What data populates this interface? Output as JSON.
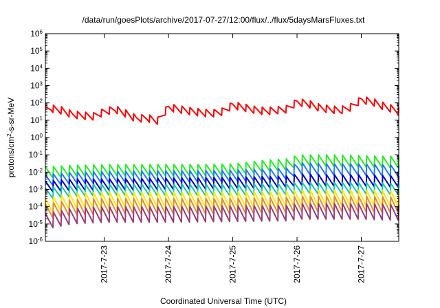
{
  "chart_data": {
    "type": "line",
    "title": "/data/run/goesPlots/archive/2017-07-27/12:00/flux/../flux/5daysMarsFluxes.txt",
    "xlabel": "Coordinated Universal Time (UTC)",
    "ylabel": {
      "base": "protons/cm",
      "sup": "2",
      "rest": "-s-sr-MeV"
    },
    "yscale": "log",
    "ylim": [
      -6,
      6
    ],
    "yticks": [
      {
        "exp": -6,
        "base": "10",
        "sup": "-6"
      },
      {
        "exp": -5,
        "base": "10",
        "sup": "-5"
      },
      {
        "exp": -4,
        "base": "10",
        "sup": "-4"
      },
      {
        "exp": -3,
        "base": "10",
        "sup": "-3"
      },
      {
        "exp": -2,
        "base": "10",
        "sup": "-2"
      },
      {
        "exp": -1,
        "base": "10",
        "sup": "-1"
      },
      {
        "exp": 0,
        "base": "10",
        "sup": "0"
      },
      {
        "exp": 1,
        "base": "10",
        "sup": "1"
      },
      {
        "exp": 2,
        "base": "10",
        "sup": "2"
      },
      {
        "exp": 3,
        "base": "10",
        "sup": "3"
      },
      {
        "exp": 4,
        "base": "10",
        "sup": "4"
      },
      {
        "exp": 5,
        "base": "10",
        "sup": "5"
      },
      {
        "exp": 6,
        "base": "10",
        "sup": "6"
      }
    ],
    "xlim": [
      "2017-07-22 02:00",
      "2017-07-27 14:00"
    ],
    "xticks": [
      {
        "t": "2017-07-23 00:00",
        "label": "2017-7-23"
      },
      {
        "t": "2017-07-24 00:00",
        "label": "2017-7-24"
      },
      {
        "t": "2017-07-25 00:00",
        "label": "2017-7-25"
      },
      {
        "t": "2017-07-26 00:00",
        "label": "2017-7-26"
      },
      {
        "t": "2017-07-27 00:00",
        "label": "2017-7-27"
      }
    ],
    "series": [
      {
        "color": "#ff0000",
        "cycle_hours": 3,
        "points": [
          [
            "2017-07-22 02:00",
            60
          ],
          [
            "2017-07-22 04:00",
            80
          ],
          [
            "2017-07-22 08:00",
            60
          ],
          [
            "2017-07-22 12:00",
            35
          ],
          [
            "2017-07-22 16:00",
            30
          ],
          [
            "2017-07-22 20:00",
            27
          ],
          [
            "2017-07-23 00:00",
            50
          ],
          [
            "2017-07-23 04:00",
            70
          ],
          [
            "2017-07-23 08:00",
            40
          ],
          [
            "2017-07-23 12:00",
            20
          ],
          [
            "2017-07-23 16:00",
            22
          ],
          [
            "2017-07-23 20:00",
            15
          ],
          [
            "2017-07-24 00:00",
            90
          ],
          [
            "2017-07-24 04:00",
            70
          ],
          [
            "2017-07-24 08:00",
            55
          ],
          [
            "2017-07-24 12:00",
            45
          ],
          [
            "2017-07-24 16:00",
            40
          ],
          [
            "2017-07-24 20:00",
            50
          ],
          [
            "2017-07-25 00:00",
            120
          ],
          [
            "2017-07-25 04:00",
            90
          ],
          [
            "2017-07-25 08:00",
            65
          ],
          [
            "2017-07-25 12:00",
            55
          ],
          [
            "2017-07-25 16:00",
            60
          ],
          [
            "2017-07-25 20:00",
            70
          ],
          [
            "2017-07-26 00:00",
            180
          ],
          [
            "2017-07-26 04:00",
            150
          ],
          [
            "2017-07-26 08:00",
            90
          ],
          [
            "2017-07-26 12:00",
            70
          ],
          [
            "2017-07-26 16:00",
            60
          ],
          [
            "2017-07-26 20:00",
            90
          ],
          [
            "2017-07-27 00:00",
            250
          ],
          [
            "2017-07-27 04:00",
            190
          ],
          [
            "2017-07-27 08:00",
            110
          ],
          [
            "2017-07-27 14:00",
            55
          ]
        ]
      },
      {
        "color": "#22ee22",
        "cycle_hours": 3,
        "points": [
          [
            "2017-07-22 02:00",
            0.02
          ],
          [
            "2017-07-22 12:00",
            0.025
          ],
          [
            "2017-07-23 00:00",
            0.027
          ],
          [
            "2017-07-24 00:00",
            0.028
          ],
          [
            "2017-07-24 12:00",
            0.028
          ],
          [
            "2017-07-25 00:00",
            0.03
          ],
          [
            "2017-07-25 12:00",
            0.05
          ],
          [
            "2017-07-25 21:00",
            0.06
          ],
          [
            "2017-07-26 00:00",
            0.1
          ],
          [
            "2017-07-26 12:00",
            0.1
          ],
          [
            "2017-07-27 00:00",
            0.09
          ],
          [
            "2017-07-27 14:00",
            0.08
          ]
        ]
      },
      {
        "color": "#1e78ff",
        "cycle_hours": 3,
        "points": [
          [
            "2017-07-22 02:00",
            0.007
          ],
          [
            "2017-07-22 12:00",
            0.01
          ],
          [
            "2017-07-23 00:00",
            0.011
          ],
          [
            "2017-07-24 00:00",
            0.012
          ],
          [
            "2017-07-24 12:00",
            0.012
          ],
          [
            "2017-07-25 00:00",
            0.013
          ],
          [
            "2017-07-25 12:00",
            0.015
          ],
          [
            "2017-07-25 21:00",
            0.018
          ],
          [
            "2017-07-26 00:00",
            0.035
          ],
          [
            "2017-07-26 12:00",
            0.03
          ],
          [
            "2017-07-27 00:00",
            0.03
          ],
          [
            "2017-07-27 14:00",
            0.025
          ]
        ]
      },
      {
        "color": "#0000cc",
        "cycle_hours": 3,
        "points": [
          [
            "2017-07-22 02:00",
            0.003
          ],
          [
            "2017-07-22 12:00",
            0.004
          ],
          [
            "2017-07-23 00:00",
            0.004
          ],
          [
            "2017-07-24 00:00",
            0.0045
          ],
          [
            "2017-07-25 00:00",
            0.005
          ],
          [
            "2017-07-25 21:00",
            0.006
          ],
          [
            "2017-07-26 00:00",
            0.008
          ],
          [
            "2017-07-26 12:00",
            0.007
          ],
          [
            "2017-07-27 00:00",
            0.007
          ],
          [
            "2017-07-27 14:00",
            0.006
          ]
        ]
      },
      {
        "color": "#10c8a8",
        "cycle_hours": 3,
        "points": [
          [
            "2017-07-22 02:00",
            0.0012
          ],
          [
            "2017-07-22 12:00",
            0.0018
          ],
          [
            "2017-07-23 00:00",
            0.002
          ],
          [
            "2017-07-24 00:00",
            0.002
          ],
          [
            "2017-07-25 00:00",
            0.002
          ],
          [
            "2017-07-25 21:00",
            0.0022
          ],
          [
            "2017-07-26 00:00",
            0.0025
          ],
          [
            "2017-07-26 12:00",
            0.0025
          ],
          [
            "2017-07-27 00:00",
            0.0025
          ],
          [
            "2017-07-27 14:00",
            0.0022
          ]
        ]
      },
      {
        "color": "#ffe600",
        "cycle_hours": 3,
        "points": [
          [
            "2017-07-22 02:00",
            0.0003
          ],
          [
            "2017-07-22 12:00",
            0.0006
          ],
          [
            "2017-07-23 00:00",
            0.0007
          ],
          [
            "2017-07-24 00:00",
            0.0007
          ],
          [
            "2017-07-25 00:00",
            0.0007
          ],
          [
            "2017-07-25 21:00",
            0.0008
          ],
          [
            "2017-07-26 00:00",
            0.0009
          ],
          [
            "2017-07-26 12:00",
            0.0009
          ],
          [
            "2017-07-27 00:00",
            0.0009
          ],
          [
            "2017-07-27 14:00",
            0.0008
          ]
        ]
      },
      {
        "color": "#e88a2a",
        "cycle_hours": 3,
        "points": [
          [
            "2017-07-22 02:00",
            0.00015
          ],
          [
            "2017-07-22 12:00",
            0.00025
          ],
          [
            "2017-07-23 00:00",
            0.0003
          ],
          [
            "2017-07-24 00:00",
            0.0003
          ],
          [
            "2017-07-25 00:00",
            0.0003
          ],
          [
            "2017-07-25 21:00",
            0.00035
          ],
          [
            "2017-07-26 00:00",
            0.0004
          ],
          [
            "2017-07-26 12:00",
            0.0004
          ],
          [
            "2017-07-27 00:00",
            0.0004
          ],
          [
            "2017-07-27 14:00",
            0.00035
          ]
        ]
      },
      {
        "color": "#9a3b7a",
        "cycle_hours": 3,
        "points": [
          [
            "2017-07-22 02:00",
            4e-05
          ],
          [
            "2017-07-22 12:00",
            8e-05
          ],
          [
            "2017-07-23 00:00",
            0.0001
          ],
          [
            "2017-07-24 00:00",
            0.0001
          ],
          [
            "2017-07-25 00:00",
            0.00011
          ],
          [
            "2017-07-25 21:00",
            0.00012
          ],
          [
            "2017-07-26 00:00",
            0.00015
          ],
          [
            "2017-07-26 12:00",
            0.00015
          ],
          [
            "2017-07-27 00:00",
            0.00015
          ],
          [
            "2017-07-27 14:00",
            0.00013
          ]
        ]
      }
    ]
  }
}
